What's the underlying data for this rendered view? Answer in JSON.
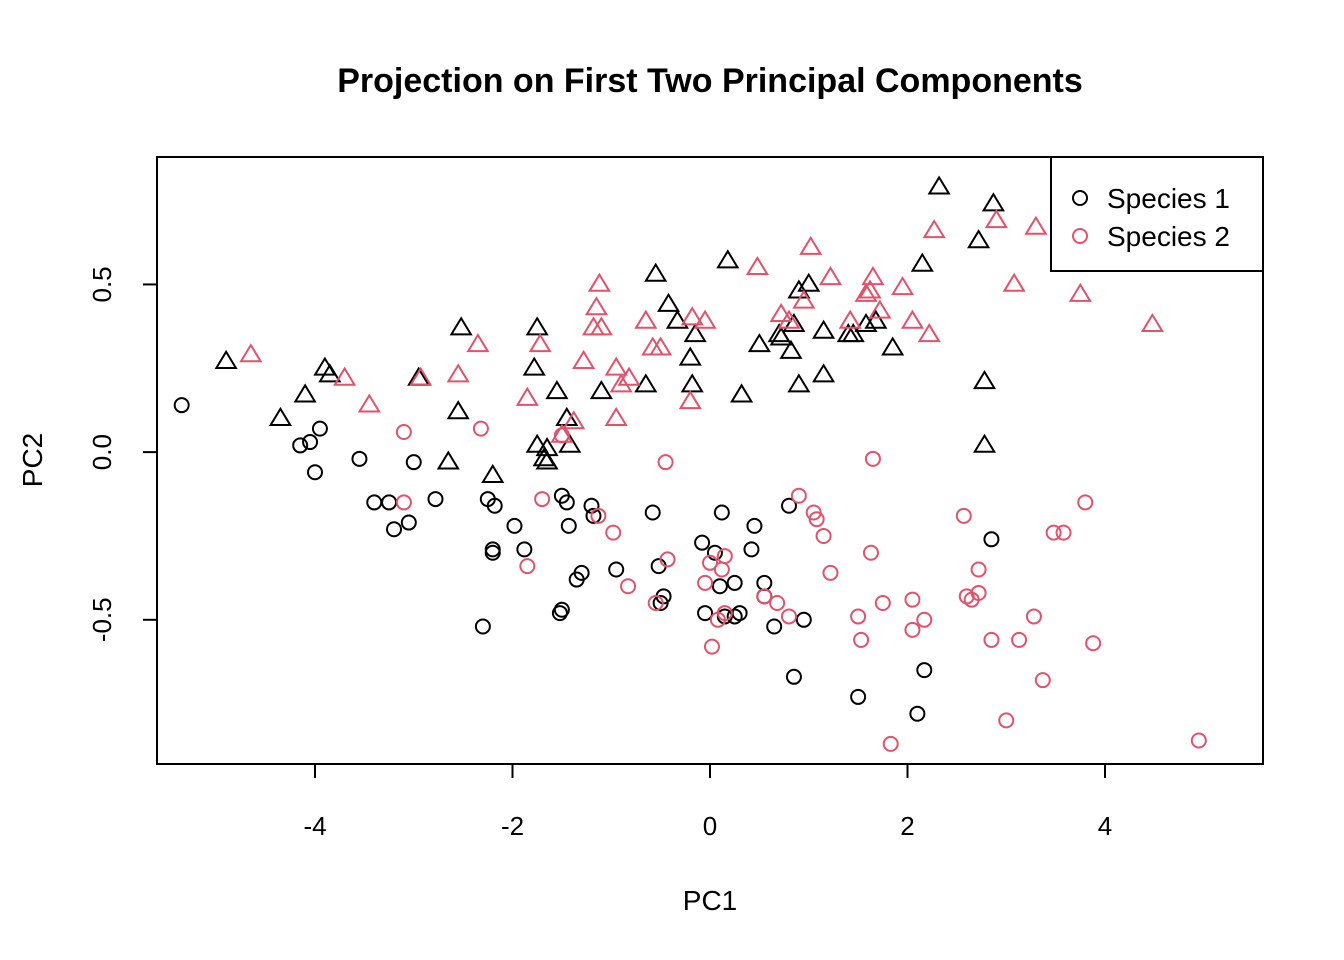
{
  "chart_data": {
    "type": "scatter",
    "title": "Projection on First Two Principal Components",
    "xlabel": "PC1",
    "ylabel": "PC2",
    "xlim": [
      -5.6,
      5.6
    ],
    "ylim": [
      -0.93,
      0.88
    ],
    "x_ticks": [
      -4,
      -2,
      0,
      2,
      4
    ],
    "y_ticks": [
      -0.5,
      0.0,
      0.5
    ],
    "x_tick_labels": [
      "-4",
      "-2",
      "0",
      "2",
      "4"
    ],
    "y_tick_labels": [
      "-0.5",
      "0.0",
      "0.5"
    ],
    "grid": false,
    "legend_position": "top-right",
    "colors": {
      "species1": "#000000",
      "species2": "#DF536B"
    },
    "series": [
      {
        "name": "Species 1",
        "marker": "circle",
        "color": "#000000",
        "points": [
          [
            -5.35,
            0.14
          ],
          [
            -4.15,
            0.02
          ],
          [
            -4.05,
            0.03
          ],
          [
            -3.95,
            0.07
          ],
          [
            -4.0,
            -0.06
          ],
          [
            -3.55,
            -0.02
          ],
          [
            -3.4,
            -0.15
          ],
          [
            -3.25,
            -0.15
          ],
          [
            -3.2,
            -0.23
          ],
          [
            -3.05,
            -0.21
          ],
          [
            -3.0,
            -0.03
          ],
          [
            -2.78,
            -0.14
          ],
          [
            -2.3,
            -0.52
          ],
          [
            -2.25,
            -0.14
          ],
          [
            -2.2,
            -0.29
          ],
          [
            -2.2,
            -0.3
          ],
          [
            -2.18,
            -0.16
          ],
          [
            -1.98,
            -0.22
          ],
          [
            -1.88,
            -0.29
          ],
          [
            -1.5,
            -0.13
          ],
          [
            -1.45,
            -0.15
          ],
          [
            -1.43,
            -0.22
          ],
          [
            -1.35,
            -0.38
          ],
          [
            -1.3,
            -0.36
          ],
          [
            -1.52,
            -0.48
          ],
          [
            -1.5,
            -0.47
          ],
          [
            -1.2,
            -0.16
          ],
          [
            -1.18,
            -0.19
          ],
          [
            -0.95,
            -0.35
          ],
          [
            -0.58,
            -0.18
          ],
          [
            -0.52,
            -0.34
          ],
          [
            -0.47,
            -0.43
          ],
          [
            -0.5,
            -0.45
          ],
          [
            -0.08,
            -0.27
          ],
          [
            -0.05,
            -0.48
          ],
          [
            0.05,
            -0.3
          ],
          [
            0.1,
            -0.4
          ],
          [
            0.12,
            -0.18
          ],
          [
            0.15,
            -0.49
          ],
          [
            0.25,
            -0.39
          ],
          [
            0.25,
            -0.49
          ],
          [
            0.3,
            -0.48
          ],
          [
            0.42,
            -0.29
          ],
          [
            0.45,
            -0.22
          ],
          [
            0.55,
            -0.39
          ],
          [
            0.55,
            -0.43
          ],
          [
            0.65,
            -0.52
          ],
          [
            0.8,
            -0.16
          ],
          [
            0.85,
            -0.67
          ],
          [
            0.95,
            -0.5
          ],
          [
            1.5,
            -0.73
          ],
          [
            2.1,
            -0.78
          ],
          [
            2.17,
            -0.65
          ],
          [
            2.85,
            -0.26
          ]
        ]
      },
      {
        "name": "Species 1",
        "marker": "triangle",
        "color": "#000000",
        "points": [
          [
            -4.9,
            0.27
          ],
          [
            -4.35,
            0.1
          ],
          [
            -4.1,
            0.17
          ],
          [
            -3.9,
            0.25
          ],
          [
            -3.85,
            0.23
          ],
          [
            -2.95,
            0.22
          ],
          [
            -2.65,
            -0.03
          ],
          [
            -2.55,
            0.12
          ],
          [
            -2.52,
            0.37
          ],
          [
            -2.2,
            -0.07
          ],
          [
            -1.78,
            0.25
          ],
          [
            -1.75,
            0.37
          ],
          [
            -1.75,
            0.02
          ],
          [
            -1.68,
            -0.02
          ],
          [
            -1.65,
            -0.03
          ],
          [
            -1.65,
            0.01
          ],
          [
            -1.55,
            0.18
          ],
          [
            -1.45,
            0.1
          ],
          [
            -1.42,
            0.02
          ],
          [
            -1.1,
            0.18
          ],
          [
            -0.65,
            0.2
          ],
          [
            -0.55,
            0.53
          ],
          [
            -0.42,
            0.44
          ],
          [
            -0.33,
            0.39
          ],
          [
            -0.2,
            0.28
          ],
          [
            -0.18,
            0.2
          ],
          [
            -0.15,
            0.35
          ],
          [
            0.18,
            0.57
          ],
          [
            0.32,
            0.17
          ],
          [
            0.5,
            0.32
          ],
          [
            0.7,
            0.35
          ],
          [
            0.72,
            0.34
          ],
          [
            0.82,
            0.3
          ],
          [
            0.85,
            0.38
          ],
          [
            0.9,
            0.48
          ],
          [
            0.9,
            0.2
          ],
          [
            1.0,
            0.5
          ],
          [
            1.15,
            0.36
          ],
          [
            1.15,
            0.23
          ],
          [
            1.4,
            0.35
          ],
          [
            1.45,
            0.35
          ],
          [
            1.58,
            0.38
          ],
          [
            1.68,
            0.39
          ],
          [
            1.85,
            0.31
          ],
          [
            2.15,
            0.56
          ],
          [
            2.32,
            0.79
          ],
          [
            2.72,
            0.63
          ],
          [
            2.78,
            0.21
          ],
          [
            2.78,
            0.02
          ],
          [
            2.87,
            0.74
          ]
        ]
      },
      {
        "name": "Species 2",
        "marker": "circle",
        "color": "#DF536B",
        "points": [
          [
            -3.1,
            0.06
          ],
          [
            -3.1,
            -0.15
          ],
          [
            -2.32,
            0.07
          ],
          [
            -1.85,
            -0.34
          ],
          [
            -1.7,
            -0.14
          ],
          [
            -1.5,
            0.05
          ],
          [
            -1.13,
            -0.19
          ],
          [
            -0.98,
            -0.24
          ],
          [
            -0.83,
            -0.4
          ],
          [
            -0.55,
            -0.45
          ],
          [
            -0.45,
            -0.03
          ],
          [
            -0.43,
            -0.32
          ],
          [
            -0.05,
            -0.39
          ],
          [
            0.0,
            -0.33
          ],
          [
            0.02,
            -0.58
          ],
          [
            0.08,
            -0.5
          ],
          [
            0.12,
            -0.35
          ],
          [
            0.15,
            -0.31
          ],
          [
            0.15,
            -0.48
          ],
          [
            0.55,
            -0.43
          ],
          [
            0.68,
            -0.45
          ],
          [
            0.8,
            -0.49
          ],
          [
            0.9,
            -0.13
          ],
          [
            1.05,
            -0.18
          ],
          [
            1.08,
            -0.2
          ],
          [
            1.15,
            -0.25
          ],
          [
            1.22,
            -0.36
          ],
          [
            1.5,
            -0.49
          ],
          [
            1.53,
            -0.56
          ],
          [
            1.63,
            -0.3
          ],
          [
            1.65,
            -0.02
          ],
          [
            1.75,
            -0.45
          ],
          [
            1.83,
            -0.87
          ],
          [
            2.05,
            -0.44
          ],
          [
            2.05,
            -0.53
          ],
          [
            2.17,
            -0.5
          ],
          [
            2.57,
            -0.19
          ],
          [
            2.6,
            -0.43
          ],
          [
            2.65,
            -0.44
          ],
          [
            2.72,
            -0.35
          ],
          [
            2.72,
            -0.42
          ],
          [
            2.85,
            -0.56
          ],
          [
            3.0,
            -0.8
          ],
          [
            3.13,
            -0.56
          ],
          [
            3.28,
            -0.49
          ],
          [
            3.37,
            -0.68
          ],
          [
            3.48,
            -0.24
          ],
          [
            3.58,
            -0.24
          ],
          [
            3.8,
            -0.15
          ],
          [
            3.88,
            -0.57
          ],
          [
            4.95,
            -0.86
          ]
        ]
      },
      {
        "name": "Species 2",
        "marker": "triangle",
        "color": "#DF536B",
        "points": [
          [
            -4.65,
            0.29
          ],
          [
            -3.7,
            0.22
          ],
          [
            -3.45,
            0.14
          ],
          [
            -2.93,
            0.22
          ],
          [
            -2.55,
            0.23
          ],
          [
            -2.35,
            0.32
          ],
          [
            -1.85,
            0.16
          ],
          [
            -1.72,
            0.32
          ],
          [
            -1.5,
            0.05
          ],
          [
            -1.38,
            0.09
          ],
          [
            -1.28,
            0.27
          ],
          [
            -1.18,
            0.37
          ],
          [
            -1.15,
            0.43
          ],
          [
            -1.12,
            0.5
          ],
          [
            -1.1,
            0.37
          ],
          [
            -0.95,
            0.1
          ],
          [
            -0.95,
            0.25
          ],
          [
            -0.9,
            0.2
          ],
          [
            -0.82,
            0.22
          ],
          [
            -0.65,
            0.39
          ],
          [
            -0.58,
            0.31
          ],
          [
            -0.5,
            0.31
          ],
          [
            -0.2,
            0.15
          ],
          [
            -0.18,
            0.4
          ],
          [
            -0.05,
            0.39
          ],
          [
            0.48,
            0.55
          ],
          [
            0.72,
            0.41
          ],
          [
            0.8,
            0.39
          ],
          [
            0.95,
            0.45
          ],
          [
            1.02,
            0.61
          ],
          [
            1.22,
            0.52
          ],
          [
            1.42,
            0.39
          ],
          [
            1.58,
            0.47
          ],
          [
            1.62,
            0.48
          ],
          [
            1.65,
            0.52
          ],
          [
            1.72,
            0.42
          ],
          [
            1.95,
            0.49
          ],
          [
            2.05,
            0.39
          ],
          [
            2.22,
            0.35
          ],
          [
            2.27,
            0.66
          ],
          [
            2.9,
            0.69
          ],
          [
            3.08,
            0.5
          ],
          [
            3.3,
            0.67
          ],
          [
            3.75,
            0.47
          ],
          [
            4.48,
            0.38
          ]
        ]
      }
    ],
    "legend": [
      {
        "label": "Species 1",
        "marker": "circle",
        "color": "#000000"
      },
      {
        "label": "Species 2",
        "marker": "circle",
        "color": "#DF536B"
      }
    ]
  }
}
